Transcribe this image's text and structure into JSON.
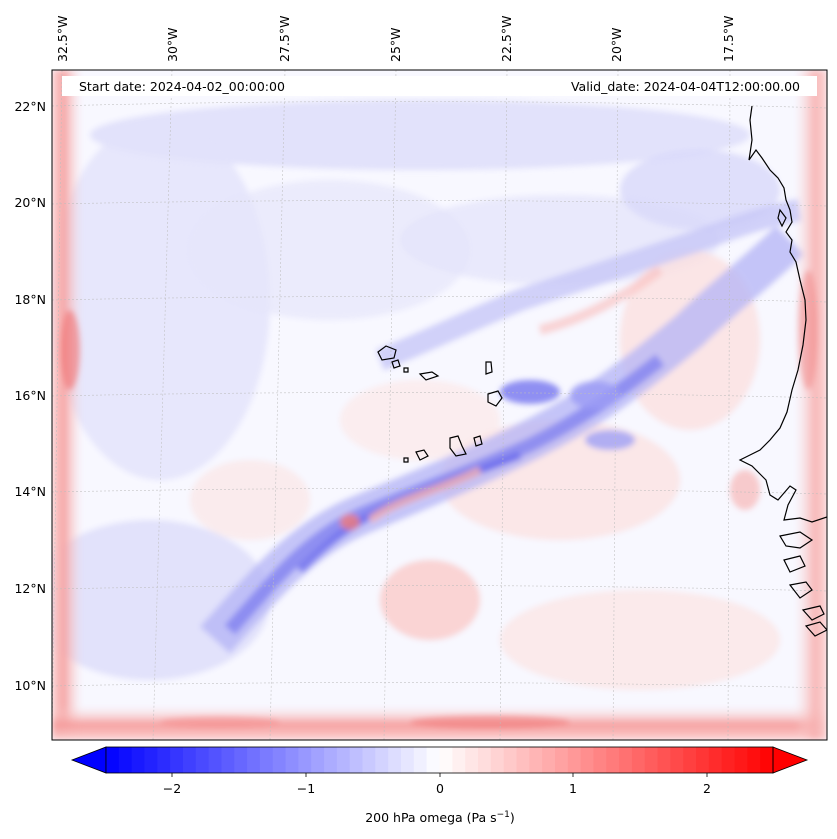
{
  "header": {
    "start_date": "Start date: 2024-04-02_00:00:00",
    "valid_date": "Valid_date: 2024-04-04T12:00:00.00"
  },
  "axes": {
    "lon_labels": [
      "32.5°W",
      "30°W",
      "27.5°W",
      "25°W",
      "22.5°W",
      "20°W",
      "17.5°W"
    ],
    "lat_labels": [
      "22°N",
      "20°N",
      "18°N",
      "16°N",
      "14°N",
      "12°N",
      "10°N"
    ]
  },
  "colorbar": {
    "ticks": [
      "−2",
      "−1",
      "0",
      "1",
      "2"
    ],
    "label_main": "200 hPa omega (Pa s",
    "label_sup": "−1",
    "label_close": ")",
    "min": -2.6,
    "max": 2.6,
    "colormap": "bwr",
    "extend": "both",
    "colors": {
      "negative": "#0000ff",
      "zero": "#ffffff",
      "positive": "#ff0000"
    }
  },
  "map": {
    "projection": "Lambert conformal",
    "field": "200 hPa omega",
    "coastline_color": "#000000",
    "gridlines": true
  }
}
